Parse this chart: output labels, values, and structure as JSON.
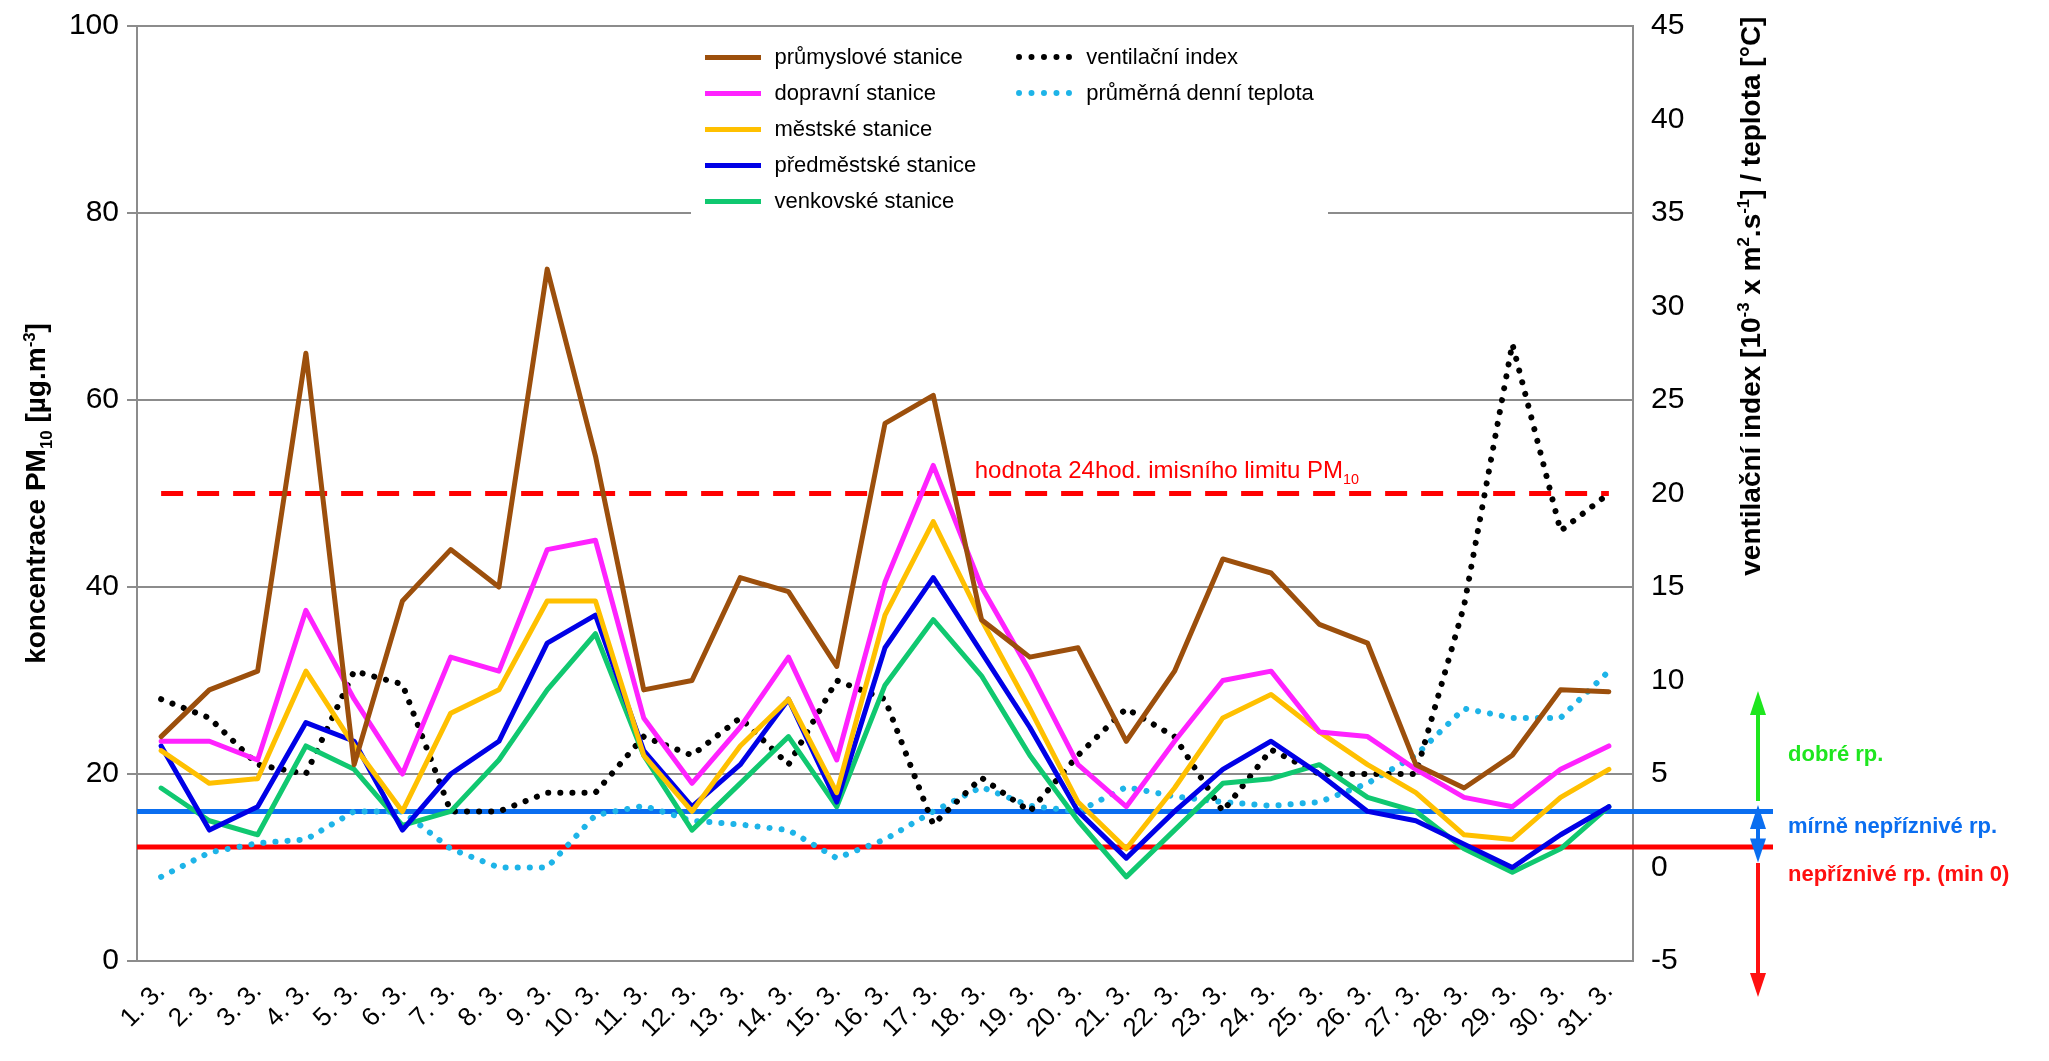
{
  "chart_data": {
    "type": "line",
    "categories": [
      "1. 3.",
      "2. 3.",
      "3. 3.",
      "4. 3.",
      "5. 3.",
      "6. 3.",
      "7. 3.",
      "8. 3.",
      "9. 3.",
      "10. 3.",
      "11. 3.",
      "12. 3.",
      "13. 3.",
      "14. 3.",
      "15. 3.",
      "16. 3.",
      "17. 3.",
      "18. 3.",
      "19. 3.",
      "20. 3.",
      "21. 3.",
      "22. 3.",
      "23. 3.",
      "24. 3.",
      "25. 3.",
      "26. 3.",
      "27. 3.",
      "28. 3.",
      "29. 3.",
      "30. 3.",
      "31. 3."
    ],
    "ylabel": "koncentrace PM$_{10}$ [µg.m$^{-3}$]",
    "y2label": "ventilační index [10$^{-3}$ x m$^{2}$.s$^{-1}$] / teplota [°C]",
    "ylim": [
      0,
      100
    ],
    "yticks": [
      0,
      20,
      40,
      60,
      80,
      100
    ],
    "y2lim": [
      -5,
      45
    ],
    "y2ticks": [
      -5,
      0,
      5,
      10,
      15,
      20,
      25,
      30,
      35,
      40,
      45
    ],
    "grid": "y",
    "legend": "top",
    "marker": "none",
    "series": [
      {
        "name": "průmyslové stanice",
        "color": "#9c4f0c",
        "line_style": "solid",
        "values": [
          24,
          29,
          31,
          65,
          21,
          38.5,
          44,
          40,
          74,
          54,
          29,
          30,
          41,
          39.5,
          31.5,
          57.5,
          60.5,
          36.5,
          32.5,
          33.5,
          23.5,
          31,
          43,
          41.5,
          36,
          34,
          21,
          18.5,
          22,
          29,
          28.8
        ]
      },
      {
        "name": "dopravní stanice",
        "color": "#ff22ff",
        "line_style": "solid",
        "values": [
          23.5,
          23.5,
          21.5,
          37.5,
          28,
          20,
          32.5,
          31,
          44,
          45,
          26,
          19,
          25,
          32.5,
          21.5,
          40.5,
          53,
          40,
          31,
          21,
          16.5,
          23.5,
          30,
          31,
          24.5,
          24,
          20.5,
          17.5,
          16.5,
          20.5,
          23
        ]
      },
      {
        "name": "městské stanice",
        "color": "#ffc000",
        "line_style": "solid",
        "values": [
          22.5,
          19,
          19.5,
          31,
          23,
          16,
          26.5,
          29,
          38.5,
          38.5,
          22,
          16,
          23,
          28,
          18,
          37,
          47,
          36.5,
          27,
          17,
          12,
          18.5,
          26,
          28.5,
          24.5,
          21,
          18,
          13.5,
          13,
          17.5,
          20.5
        ]
      },
      {
        "name": "předměstské stanice",
        "color": "#0000e6",
        "line_style": "solid",
        "values": [
          23,
          14,
          16.5,
          25.5,
          23.5,
          14,
          20,
          23.5,
          34,
          37,
          22.5,
          16.5,
          21,
          28,
          17,
          33.5,
          41,
          33,
          25,
          16,
          11,
          16,
          20.5,
          23.5,
          20,
          16,
          15,
          12.5,
          10,
          13.5,
          16.5
        ]
      },
      {
        "name": "venkovské stanice",
        "color": "#10c870",
        "line_style": "solid",
        "values": [
          18.5,
          15,
          13.5,
          23,
          20.5,
          14.5,
          16,
          21.5,
          29,
          35,
          22,
          14,
          19,
          24,
          16.5,
          29.5,
          36.5,
          30.5,
          22,
          15,
          9,
          14,
          19,
          19.5,
          21,
          17.5,
          16,
          12,
          9.5,
          12,
          16.5
        ]
      },
      {
        "name": "ventilační index",
        "color": "#000000",
        "line_style": "dotted",
        "axis": "y2",
        "values": [
          9,
          8,
          5.5,
          5,
          10.5,
          9.8,
          3,
          3,
          4,
          4,
          7,
          6,
          8,
          5.5,
          10,
          9,
          2.3,
          4.8,
          3,
          6,
          8.5,
          7,
          3,
          6.3,
          5,
          5,
          5,
          14,
          28,
          18,
          20
        ]
      },
      {
        "name": "průměrná denní teplota",
        "color": "#1eb4e8",
        "line_style": "dotted",
        "axis": "y2",
        "values": [
          -0.5,
          0.8,
          1.3,
          1.5,
          3,
          3,
          1,
          0,
          0,
          2.8,
          3.3,
          2.5,
          2.3,
          2,
          0.5,
          1.5,
          3,
          4.3,
          3.3,
          3,
          4.3,
          3.8,
          3.5,
          3.3,
          3.5,
          4.5,
          6,
          8.5,
          8,
          8,
          10.5
        ]
      }
    ],
    "ref_lines": [
      {
        "axis": "y",
        "value": 50,
        "label": "hodnota 24hod. imisního limitu PM$_{10}$",
        "color": "#ff0000",
        "line_style": "dashed"
      },
      {
        "axis": "y2",
        "value": 3,
        "label": null,
        "color": "#0a6ef0",
        "line_style": "solid"
      },
      {
        "axis": "y2",
        "value": 1.1,
        "label": null,
        "color": "#ff0000",
        "line_style": "solid"
      }
    ],
    "annotations": [
      "dobré rp.",
      "mírně nepříznivé rp.",
      "nepříznivé rp. (min 0)"
    ]
  }
}
